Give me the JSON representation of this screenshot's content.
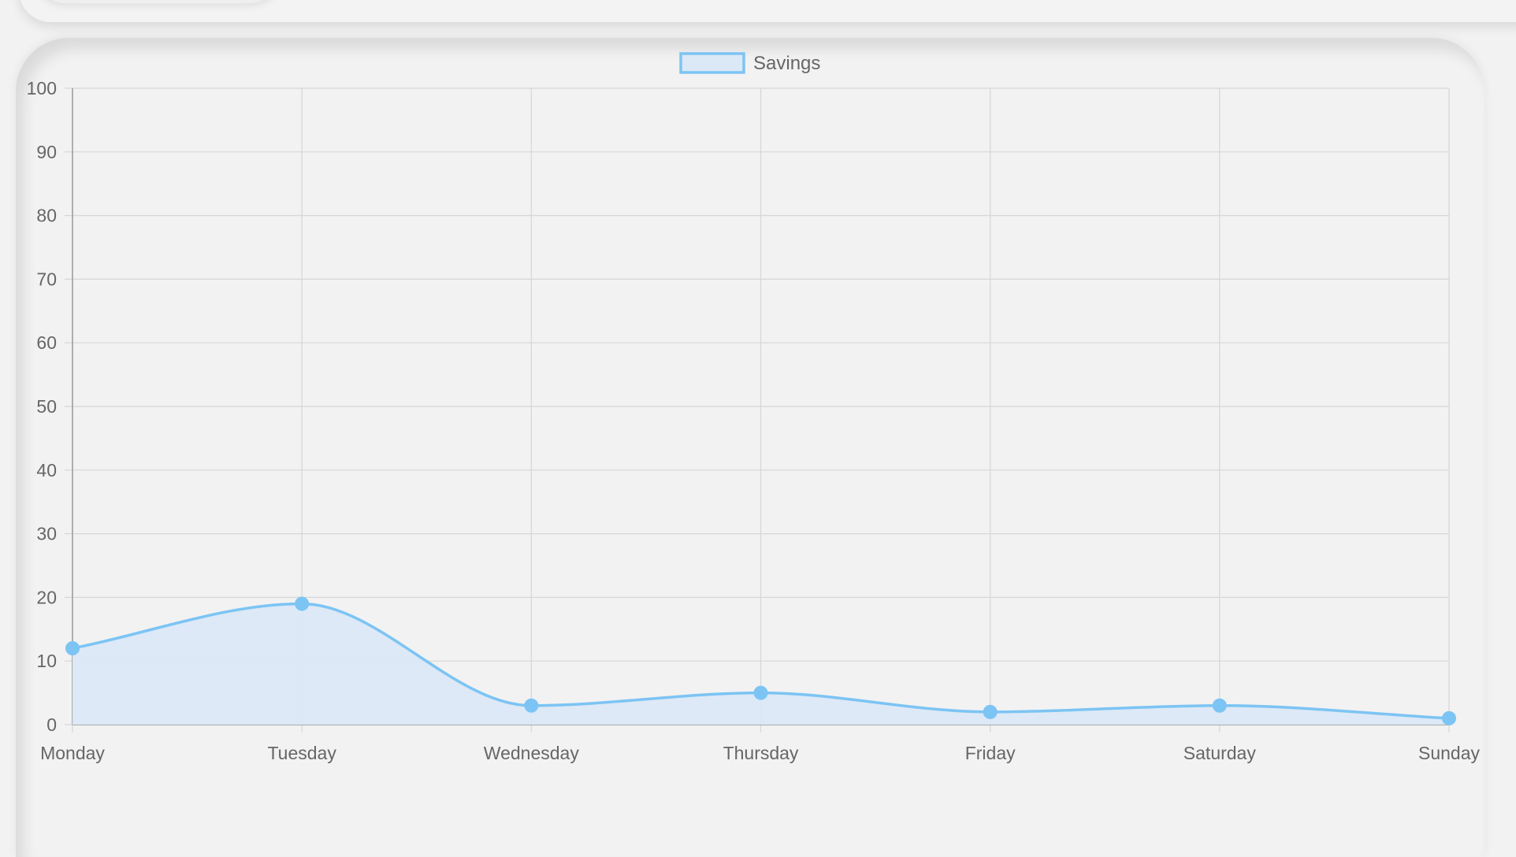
{
  "chart_data": {
    "type": "area",
    "categories": [
      "Monday",
      "Tuesday",
      "Wednesday",
      "Thursday",
      "Friday",
      "Saturday",
      "Sunday"
    ],
    "series": [
      {
        "name": "Savings",
        "values": [
          12,
          19,
          3,
          5,
          2,
          3,
          1
        ]
      }
    ],
    "ylim": [
      0,
      100
    ],
    "y_ticks": [
      "0",
      "10",
      "20",
      "30",
      "40",
      "50",
      "60",
      "70",
      "80",
      "90",
      "100"
    ],
    "grid": true,
    "legend_position": "top",
    "colors": {
      "line": "#7cc4f4",
      "fill": "#dbe8f5",
      "grid": "#d6d6d6",
      "axis": "#9a9a9a",
      "text": "#666666"
    }
  }
}
